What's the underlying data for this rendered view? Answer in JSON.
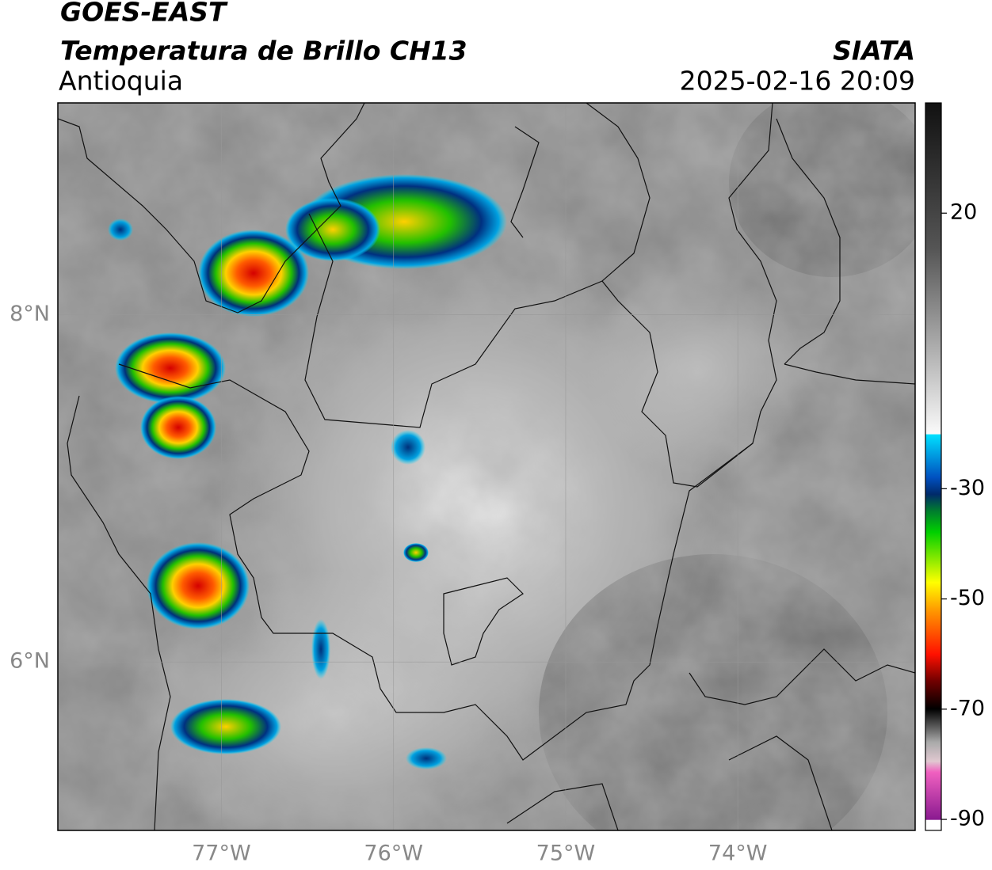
{
  "chart_data": {
    "type": "map",
    "title": "GOES-EAST",
    "subtitle": "Temperatura de Brillo CH13",
    "region": "Antioquia",
    "source": "SIATA",
    "timestamp": "2025-02-16 20:09",
    "xlim": [
      -77.95,
      -72.97
    ],
    "ylim": [
      5.03,
      9.22
    ],
    "xticks": [
      {
        "value": -77,
        "label": "77°W"
      },
      {
        "value": -76,
        "label": "76°W"
      },
      {
        "value": -75,
        "label": "75°W"
      },
      {
        "value": -74,
        "label": "74°W"
      }
    ],
    "yticks": [
      {
        "value": 6,
        "label": "6°N"
      },
      {
        "value": 8,
        "label": "8°N"
      }
    ],
    "grid": true,
    "colorbar": {
      "lim": [
        -92,
        40
      ],
      "ticks": [
        20,
        -30,
        -50,
        -70,
        -90
      ]
    }
  }
}
